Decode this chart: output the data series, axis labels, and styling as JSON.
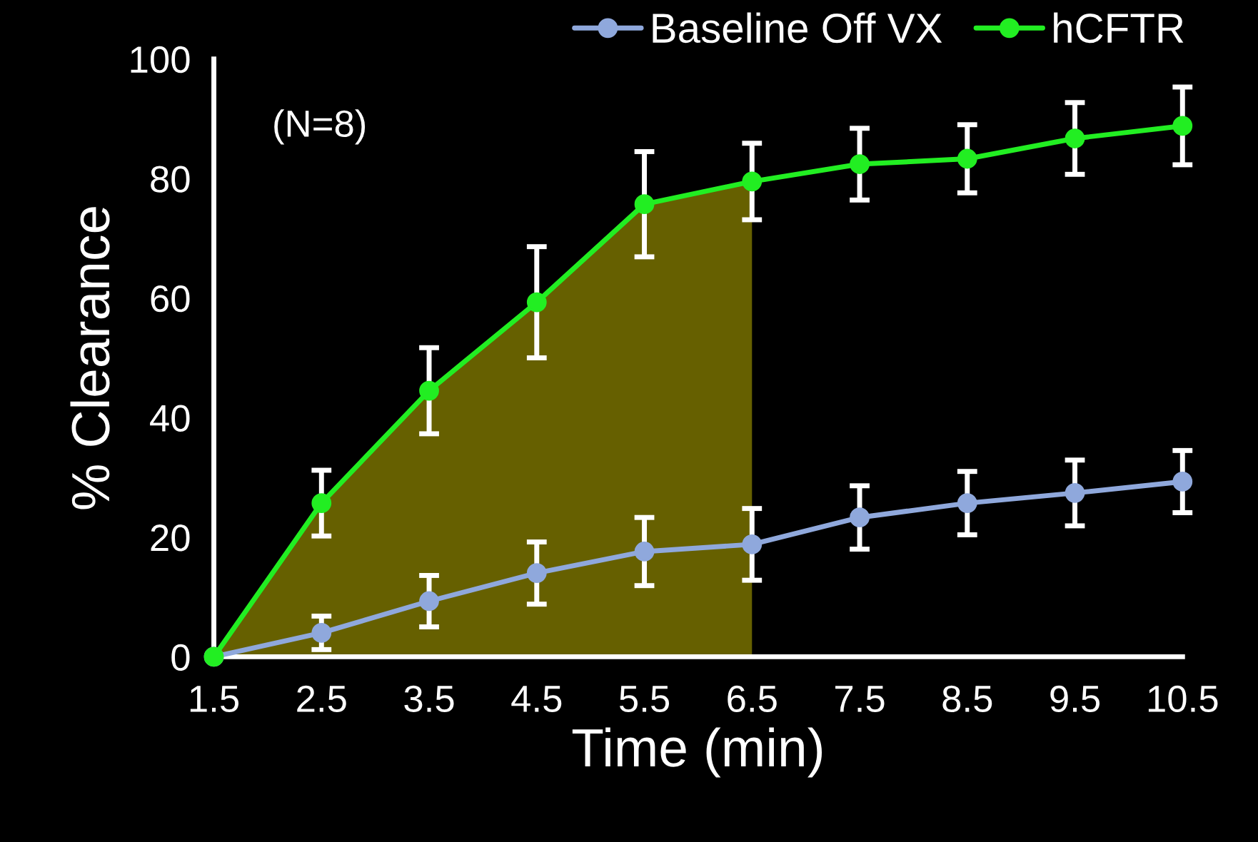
{
  "chart_data": {
    "type": "line",
    "xlabel": "Time (min)",
    "ylabel": "% Clearance",
    "annotations": [
      "(N=8)"
    ],
    "x": [
      1.5,
      2.5,
      3.5,
      4.5,
      5.5,
      6.5,
      7.5,
      8.5,
      9.5,
      10.5
    ],
    "series": [
      {
        "type": "area",
        "color": "#666000",
        "x": [
          1.5,
          2.5,
          3.5,
          4.5,
          5.5,
          6.5
        ],
        "values": [
          0,
          25.7,
          44.5,
          59.3,
          75.7,
          79.5
        ]
      },
      {
        "name": "Baseline Off VX",
        "marker": "circle",
        "color": "#8fa8dc",
        "values": [
          0,
          4.0,
          9.3,
          14,
          17.6,
          18.8,
          23.3,
          25.7,
          27.4,
          29.3
        ],
        "errors": [
          null,
          2.8,
          4.3,
          5.2,
          5.7,
          6,
          5.3,
          5.3,
          5.5,
          5.2
        ]
      },
      {
        "name": "hCFTR",
        "marker": "circle",
        "color": "#22ee22",
        "values": [
          0,
          25.7,
          44.5,
          59.3,
          75.7,
          79.5,
          82.4,
          83.3,
          86.7,
          88.8
        ],
        "errors": [
          null,
          5.5,
          7.2,
          9.3,
          8.8,
          6.4,
          6,
          5.7,
          6,
          6.5
        ]
      }
    ],
    "xlim": [
      1.5,
      10.5
    ],
    "xticks": [
      1.5,
      2.5,
      3.5,
      4.5,
      5.5,
      6.5,
      7.5,
      8.5,
      9.5,
      10.5
    ],
    "ylim": [
      0,
      100
    ],
    "yticks": [
      0,
      20,
      40,
      60,
      80,
      100
    ],
    "grid": false,
    "legend": "top right",
    "line_style": "solid"
  }
}
